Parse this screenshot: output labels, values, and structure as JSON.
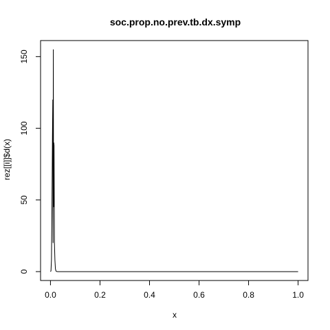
{
  "chart_data": {
    "type": "line",
    "title": "soc.prop.no.prev.tb.dx.symp",
    "xlabel": "x",
    "ylabel": "rez[[i]]$d(x)",
    "xlim": [
      -0.04,
      1.04
    ],
    "ylim": [
      -6.2,
      161.2
    ],
    "xticks": [
      0.0,
      0.2,
      0.4,
      0.6,
      0.8,
      1.0
    ],
    "xtick_labels": [
      "0.0",
      "0.2",
      "0.4",
      "0.6",
      "0.8",
      "1.0"
    ],
    "yticks": [
      0,
      50,
      100,
      150
    ],
    "ytick_labels": [
      "0",
      "50",
      "100",
      "150"
    ],
    "grid": false,
    "series": [
      {
        "color": "#000000",
        "x": [
          0.0,
          0.002,
          0.004,
          0.006,
          0.008,
          0.0095,
          0.0105,
          0.0115,
          0.0125,
          0.0135,
          0.0145,
          0.016,
          0.018,
          0.02,
          0.022,
          0.025,
          0.03,
          0.05,
          0.1,
          0.2,
          0.4,
          0.6,
          0.8,
          1.0
        ],
        "y": [
          0,
          0.5,
          8,
          45,
          95,
          120,
          20,
          155,
          45,
          90,
          88,
          20,
          8,
          2,
          0.5,
          0.1,
          0,
          0,
          0,
          0,
          0,
          0,
          0,
          0
        ]
      }
    ]
  }
}
